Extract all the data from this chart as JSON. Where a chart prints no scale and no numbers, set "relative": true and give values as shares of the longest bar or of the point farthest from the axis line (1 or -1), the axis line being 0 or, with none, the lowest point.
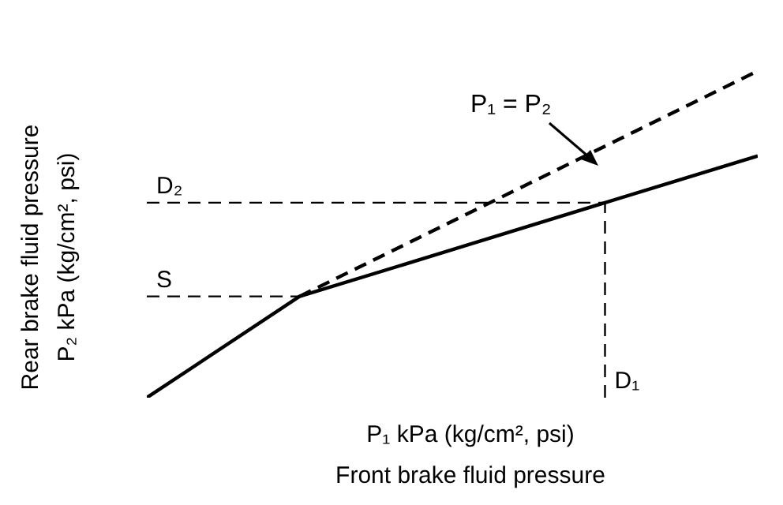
{
  "chart_data": {
    "type": "line",
    "relative": true,
    "xlabel": "P₁ kPa (kg/cm², psi)\nFront brake fluid pressure",
    "ylabel": "Rear brake fluid pressure\nP₂ kPa (kg/cm², psi)",
    "categories": [
      null,
      null,
      null,
      null,
      null
    ],
    "series": [
      {
        "color": "#000000",
        "line_style": "solid",
        "values": [
          0,
          0.31,
          0.453,
          0.597,
          0.74
        ]
      },
      {
        "name": "P₁ = P₂",
        "color": "#000000",
        "line_style": "dashed",
        "values": [
          null,
          0.31,
          null,
          null,
          1
        ]
      }
    ],
    "ref_lines": [
      {
        "axis": "y",
        "value": 0.31,
        "label": "S",
        "line_style": "dashed",
        "color": "#000000"
      },
      {
        "axis": "y",
        "value": 0.597,
        "label": "D₂",
        "line_style": "dashed",
        "color": "#000000"
      }
    ],
    "annotations": [
      "D₁"
    ]
  }
}
